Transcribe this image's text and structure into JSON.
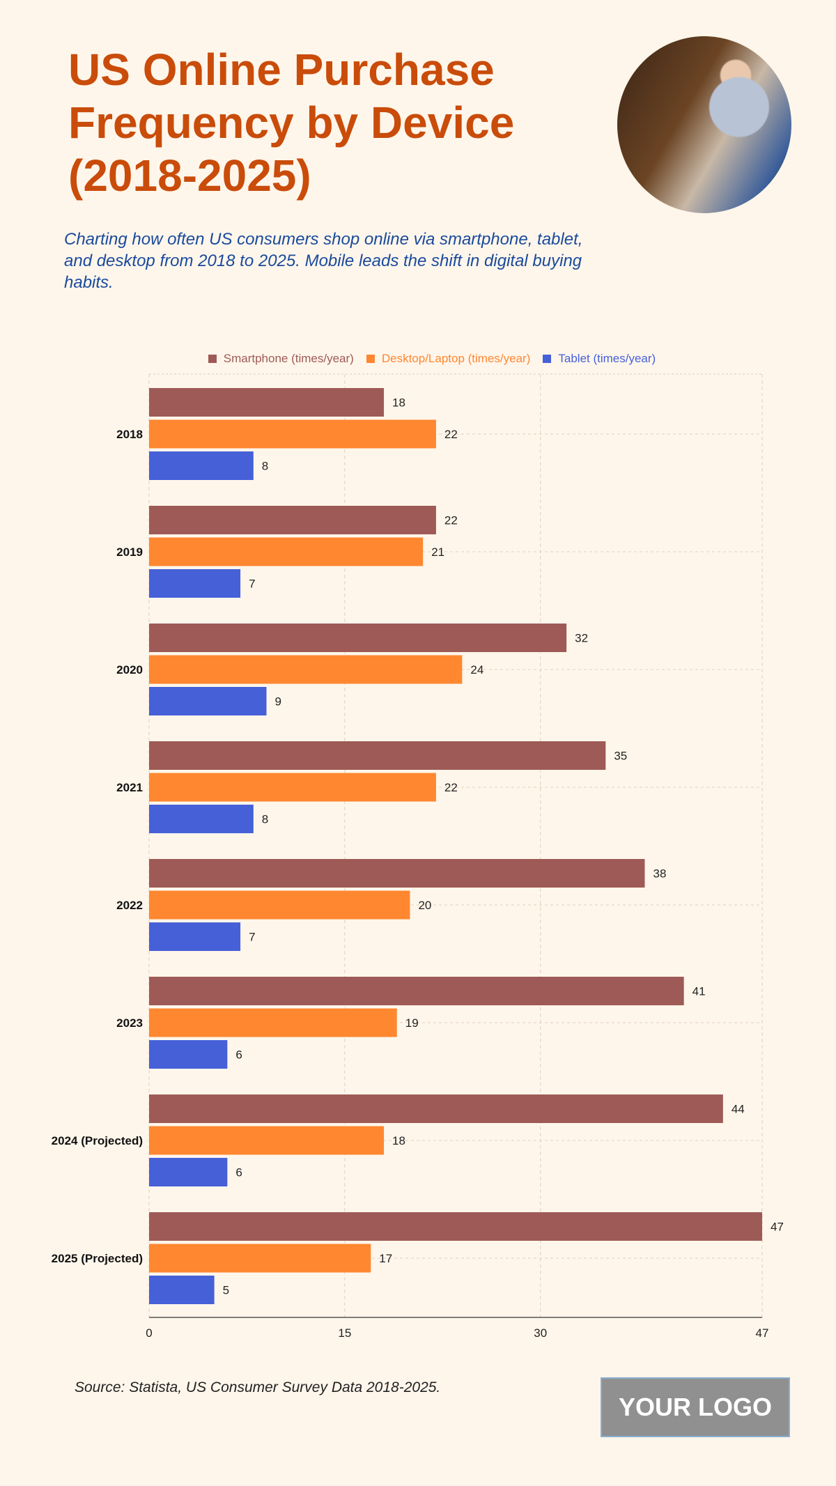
{
  "header": {
    "title": "US Online Purchase Frequency by Device (2018-2025)",
    "subtitle": "Charting how often US consumers shop online via smartphone, tablet, and desktop from 2018 to 2025. Mobile leads the shift in digital buying habits."
  },
  "chart_data": {
    "type": "bar",
    "orientation": "horizontal",
    "categories": [
      "2018",
      "2019",
      "2020",
      "2021",
      "2022",
      "2023",
      "2024 (Projected)",
      "2025 (Projected)"
    ],
    "series": [
      {
        "name": "Smartphone (times/year)",
        "color": "#9E5A56",
        "values": [
          18,
          22,
          32,
          35,
          38,
          41,
          44,
          47
        ]
      },
      {
        "name": "Desktop/Laptop (times/year)",
        "color": "#FF8730",
        "values": [
          22,
          21,
          24,
          22,
          20,
          19,
          18,
          17
        ]
      },
      {
        "name": "Tablet (times/year)",
        "color": "#4660D8",
        "values": [
          8,
          7,
          9,
          8,
          7,
          6,
          6,
          5
        ]
      }
    ],
    "xlim": [
      0,
      47
    ],
    "xticks": [
      "0",
      "15",
      "30",
      "47"
    ],
    "grid": true,
    "legend": "top"
  },
  "footer": {
    "source": "Source: Statista, US Consumer Survey Data 2018-2025.",
    "logo": "YOUR LOGO"
  }
}
